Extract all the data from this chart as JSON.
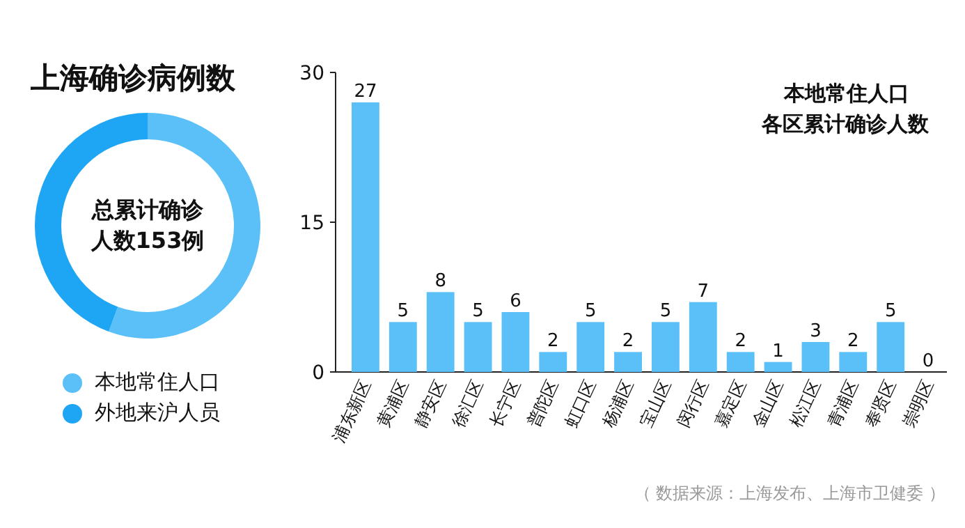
{
  "chart_data": [
    {
      "type": "donut",
      "title": "上海确诊病例数",
      "categories": [
        "本地常住人口",
        "外地来沪人员"
      ],
      "values": [
        55.6,
        44.4
      ],
      "colors": [
        "#5bc0f8",
        "#1ea6f5"
      ],
      "legend": "bottom",
      "annotations": [
        "总累计确诊人数153例"
      ]
    },
    {
      "type": "bar",
      "title": "本地常住人口",
      "subtitle": "各区累计确诊人数",
      "categories": [
        "浦东新区",
        "黄浦区",
        "静安区",
        "徐汇区",
        "长宁区",
        "普陀区",
        "虹口区",
        "杨浦区",
        "宝山区",
        "闵行区",
        "嘉定区",
        "金山区",
        "松江区",
        "青浦区",
        "奉贤区",
        "崇明区"
      ],
      "values": [
        27,
        5,
        8,
        5,
        6,
        2,
        5,
        2,
        5,
        7,
        2,
        1,
        3,
        2,
        5,
        0
      ],
      "color": "#5bc0f8",
      "ylim": [
        0,
        30
      ],
      "yticks": [
        0,
        15,
        30
      ],
      "data_labels": true,
      "grid": false,
      "annotations": [
        "（ 数据来源：上海发布、上海市卫健委 ）"
      ]
    }
  ]
}
